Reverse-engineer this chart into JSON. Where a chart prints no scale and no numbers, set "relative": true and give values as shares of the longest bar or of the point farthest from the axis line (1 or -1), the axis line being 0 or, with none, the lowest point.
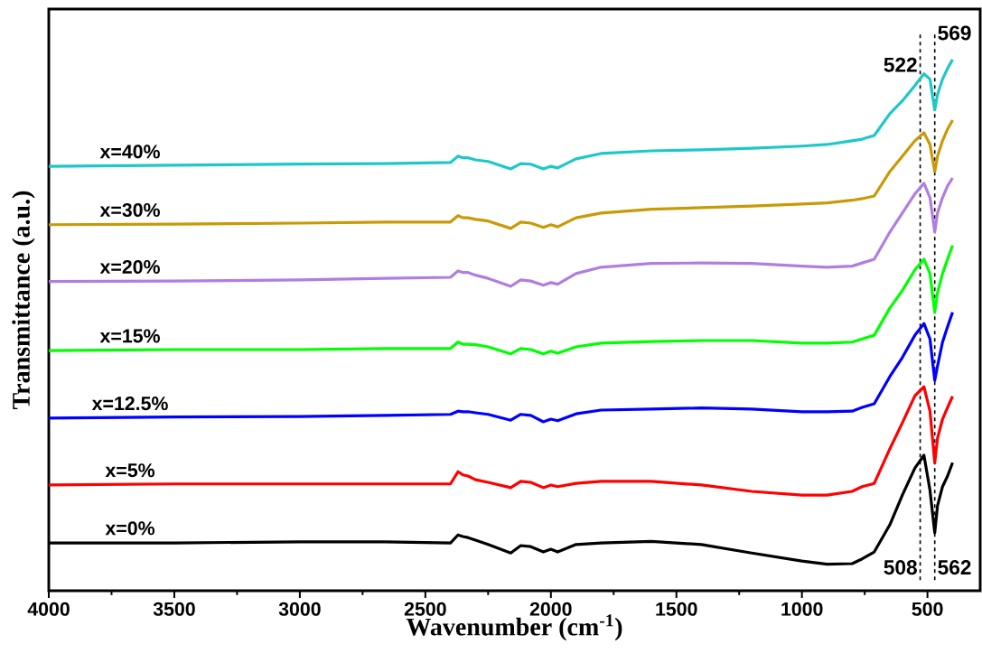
{
  "chart_data": {
    "type": "line",
    "relative": true,
    "xlabel": "Wavenumber (cm$^{-1}$)",
    "ylabel": "Transmittance (a.u.)",
    "xlim": [
      4000,
      290
    ],
    "xticks": [
      4000,
      {
        "value": 3750,
        "label": null
      },
      3500,
      {
        "value": 3250,
        "label": null
      },
      3000,
      {
        "value": 2750,
        "label": null
      },
      2500,
      {
        "value": 2250,
        "label": null
      },
      2000,
      {
        "value": 1750,
        "label": null
      },
      1500,
      {
        "value": 1250,
        "label": null
      },
      1000,
      {
        "value": 750,
        "label": null
      },
      500
    ],
    "x": [
      4000,
      3500,
      3000,
      2660,
      2400,
      2370,
      2350,
      2330,
      2300,
      2250,
      2160,
      2120,
      2080,
      2030,
      2000,
      1973,
      1900,
      1800,
      1600,
      1400,
      1200,
      1000,
      900,
      800,
      760,
      712,
      650,
      600,
      550,
      514,
      490,
      471,
      460,
      440,
      420,
      400
    ],
    "series": [
      {
        "name": "x=0%",
        "color": "#000000",
        "values": [
          0.09,
          0.09,
          0.092,
          0.092,
          0.09,
          0.105,
          0.102,
          0.1,
          0.095,
          0.087,
          0.071,
          0.085,
          0.083,
          0.073,
          0.078,
          0.073,
          0.087,
          0.09,
          0.093,
          0.087,
          0.071,
          0.056,
          0.05,
          0.051,
          0.06,
          0.073,
          0.124,
          0.18,
          0.231,
          0.255,
          0.189,
          0.109,
          0.16,
          0.196,
          0.216,
          0.241
        ]
      },
      {
        "name": "x=5%",
        "color": "#ff0000",
        "values": [
          0.199,
          0.201,
          0.201,
          0.201,
          0.201,
          0.224,
          0.218,
          0.216,
          0.209,
          0.204,
          0.194,
          0.206,
          0.204,
          0.194,
          0.199,
          0.196,
          0.202,
          0.206,
          0.206,
          0.199,
          0.187,
          0.18,
          0.18,
          0.187,
          0.196,
          0.202,
          0.267,
          0.316,
          0.367,
          0.384,
          0.338,
          0.241,
          0.287,
          0.323,
          0.345,
          0.366
        ]
      },
      {
        "name": "x=12.5%",
        "color": "#0000ff",
        "values": [
          0.325,
          0.327,
          0.328,
          0.33,
          0.332,
          0.338,
          0.337,
          0.337,
          0.335,
          0.332,
          0.321,
          0.332,
          0.33,
          0.318,
          0.323,
          0.32,
          0.333,
          0.34,
          0.342,
          0.344,
          0.342,
          0.337,
          0.337,
          0.338,
          0.345,
          0.352,
          0.403,
          0.439,
          0.481,
          0.503,
          0.474,
          0.396,
          0.423,
          0.468,
          0.497,
          0.524
        ]
      },
      {
        "name": "x=15%",
        "color": "#00ff00",
        "values": [
          0.452,
          0.454,
          0.454,
          0.456,
          0.456,
          0.468,
          0.464,
          0.464,
          0.463,
          0.459,
          0.446,
          0.456,
          0.454,
          0.446,
          0.451,
          0.447,
          0.459,
          0.466,
          0.469,
          0.471,
          0.471,
          0.466,
          0.466,
          0.468,
          0.474,
          0.481,
          0.532,
          0.565,
          0.604,
          0.624,
          0.597,
          0.524,
          0.561,
          0.597,
          0.624,
          0.65
        ]
      },
      {
        "name": "x=20%",
        "color": "#b07ee0",
        "values": [
          0.582,
          0.583,
          0.585,
          0.588,
          0.59,
          0.602,
          0.599,
          0.599,
          0.594,
          0.588,
          0.573,
          0.585,
          0.583,
          0.575,
          0.58,
          0.577,
          0.597,
          0.609,
          0.616,
          0.617,
          0.616,
          0.611,
          0.609,
          0.611,
          0.617,
          0.624,
          0.675,
          0.711,
          0.747,
          0.767,
          0.74,
          0.675,
          0.711,
          0.74,
          0.762,
          0.777
        ]
      },
      {
        "name": "x=30%",
        "color": "#c99a06",
        "values": [
          0.689,
          0.69,
          0.692,
          0.694,
          0.694,
          0.706,
          0.702,
          0.702,
          0.699,
          0.696,
          0.682,
          0.694,
          0.692,
          0.684,
          0.689,
          0.685,
          0.702,
          0.711,
          0.718,
          0.721,
          0.724,
          0.728,
          0.73,
          0.735,
          0.738,
          0.743,
          0.789,
          0.818,
          0.847,
          0.862,
          0.84,
          0.789,
          0.818,
          0.847,
          0.869,
          0.886
        ]
      },
      {
        "name": "x=40%",
        "color": "#1ec8c8",
        "values": [
          0.799,
          0.801,
          0.803,
          0.804,
          0.806,
          0.818,
          0.815,
          0.815,
          0.811,
          0.808,
          0.794,
          0.804,
          0.803,
          0.794,
          0.799,
          0.796,
          0.813,
          0.823,
          0.828,
          0.83,
          0.833,
          0.837,
          0.84,
          0.847,
          0.85,
          0.857,
          0.898,
          0.922,
          0.951,
          0.973,
          0.963,
          0.905,
          0.934,
          0.963,
          0.983,
          1.0
        ]
      }
    ],
    "ref_lines": [
      {
        "axis": "x",
        "value": 529,
        "color": "#000000",
        "line_style": "dashed"
      },
      {
        "axis": "x",
        "value": 471,
        "color": "#000000",
        "line_style": "dashed"
      }
    ],
    "annotations": [
      "522",
      "569",
      "508",
      "562"
    ],
    "legend": false,
    "marker": "none",
    "line_style": "solid"
  }
}
